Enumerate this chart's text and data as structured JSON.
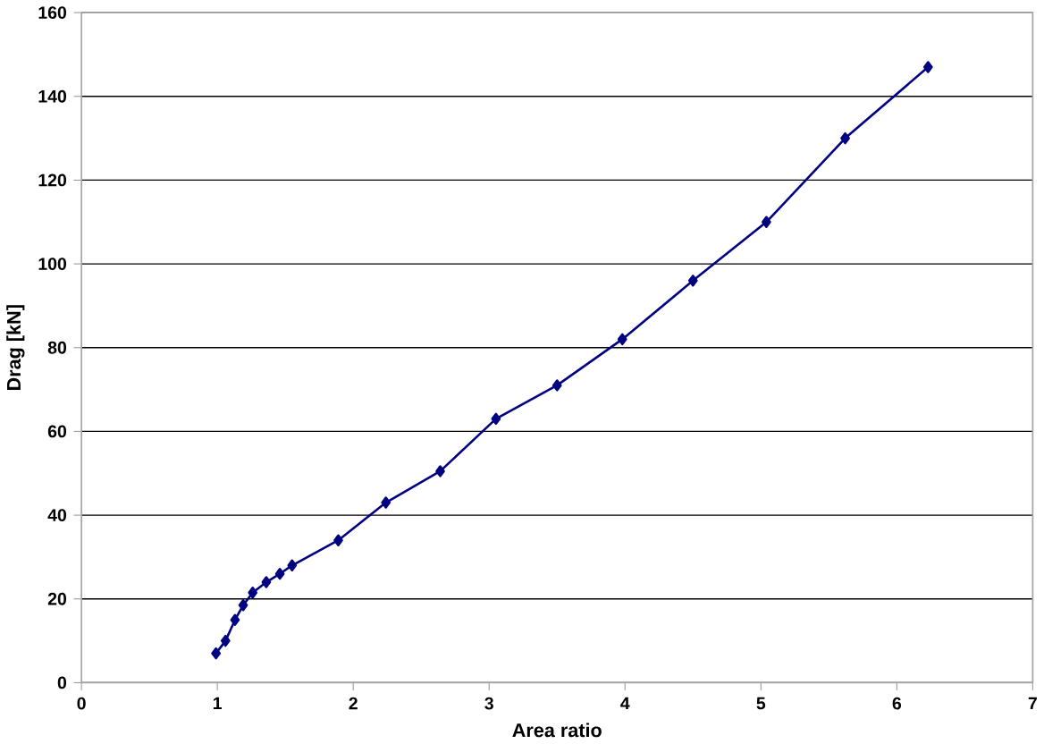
{
  "chart_data": {
    "type": "line",
    "xlabel": "Area ratio",
    "ylabel": "Drag [kN]",
    "x": [
      0.99,
      1.06,
      1.13,
      1.19,
      1.26,
      1.36,
      1.46,
      1.55,
      1.89,
      2.24,
      2.64,
      3.05,
      3.5,
      3.98,
      4.5,
      5.04,
      5.62,
      6.23
    ],
    "series": [
      {
        "color": "#000080",
        "values": [
          7,
          10,
          15,
          18.5,
          21.5,
          24,
          26,
          28,
          34,
          43,
          50.5,
          63,
          71,
          82,
          96,
          110,
          130,
          147
        ]
      }
    ],
    "xlim": [
      0,
      7
    ],
    "ylim": [
      0,
      160
    ],
    "xticks": [
      0,
      1,
      2,
      3,
      4,
      5,
      6,
      7
    ],
    "yticks": [
      0,
      20,
      40,
      60,
      80,
      100,
      120,
      140,
      160
    ],
    "grid": "y",
    "marker": "diamond",
    "line_style": "solid"
  }
}
